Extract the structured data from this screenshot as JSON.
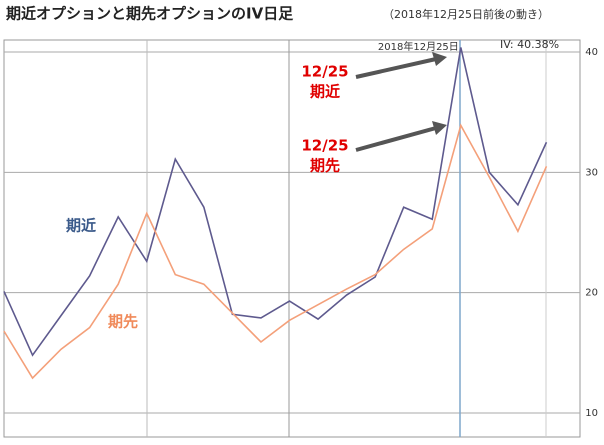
{
  "chart_data": {
    "type": "line",
    "title": "期近オプションと期先オプションのIV日足",
    "subtitle": "（2018年12月25日前後の動き）",
    "categories": [
      null,
      null,
      null,
      null,
      null,
      null,
      null,
      null,
      null,
      null,
      null,
      null,
      null,
      null,
      null,
      null,
      "2018年12月25日",
      null,
      null,
      null
    ],
    "series": [
      {
        "name": "期近",
        "color": "#5e5a8e",
        "label_color": "#3b5a8a",
        "values": [
          20.1,
          14.8,
          18.1,
          21.4,
          26.3,
          22.6,
          31.1,
          27.1,
          18.2,
          17.9,
          19.3,
          17.8,
          19.8,
          21.3,
          27.1,
          26.1,
          40.38,
          30.0,
          27.3,
          32.5
        ]
      },
      {
        "name": "期先",
        "color": "#f4a07a",
        "label_color": "#f08a5a",
        "values": [
          16.8,
          12.9,
          15.3,
          17.1,
          20.7,
          26.6,
          21.5,
          20.7,
          18.3,
          15.9,
          17.7,
          19.0,
          20.3,
          21.5,
          23.6,
          25.3,
          33.9,
          29.6,
          25.1,
          30.5
        ]
      }
    ],
    "ylim": [
      8,
      41
    ],
    "yticks": [
      10,
      20,
      30,
      40
    ],
    "grid": true,
    "annotations": [
      {
        "text": "IV: 40.38%"
      },
      {
        "lines": [
          "12/25",
          "期近"
        ],
        "color": "#e00000"
      },
      {
        "lines": [
          "12/25",
          "期先"
        ],
        "color": "#e00000"
      }
    ]
  }
}
